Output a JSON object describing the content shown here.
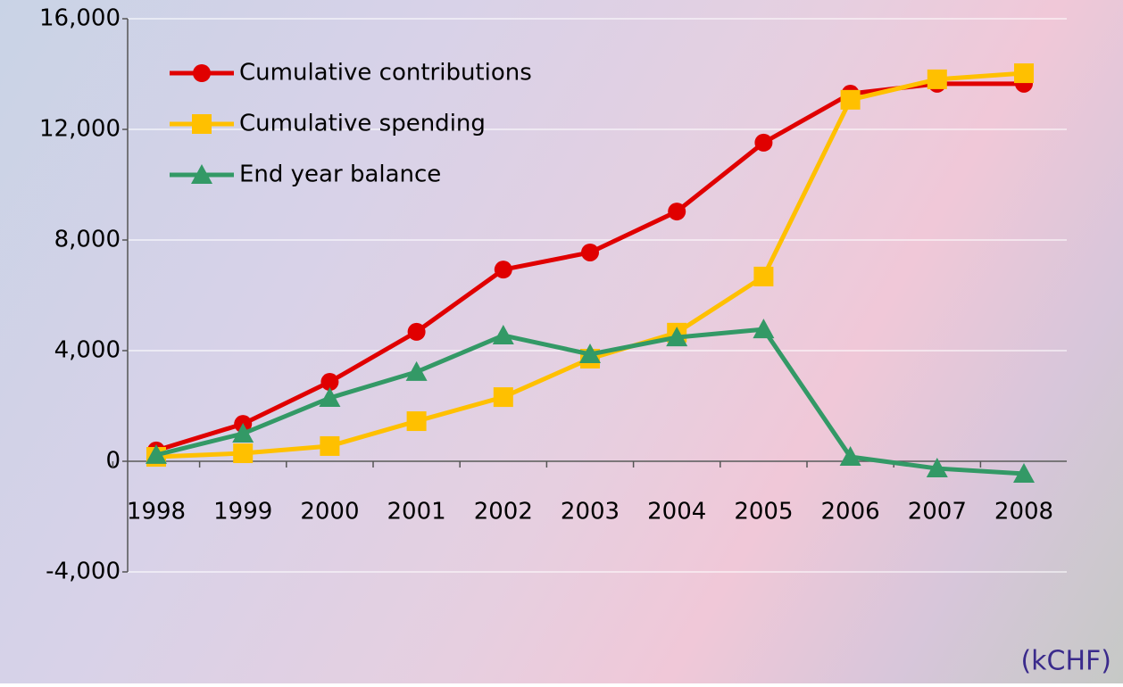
{
  "chart_data": {
    "type": "line",
    "annotation": "(kCHF)",
    "categories": [
      "1998",
      "1999",
      "2000",
      "2001",
      "2002",
      "2003",
      "2004",
      "2005",
      "2006",
      "2007",
      "2008"
    ],
    "series": [
      {
        "name": "Cumulative contributions",
        "color": "#e00000",
        "marker": "circle",
        "values": [
          390,
          1350,
          2870,
          4680,
          6930,
          7550,
          9030,
          11520,
          13290,
          13650,
          13650
        ]
      },
      {
        "name": "Cumulative spending",
        "color": "#ffc000",
        "marker": "square",
        "values": [
          160,
          290,
          550,
          1450,
          2320,
          3710,
          4650,
          6680,
          13070,
          13810,
          14030
        ]
      },
      {
        "name": "End year balance",
        "color": "#339966",
        "marker": "triangle",
        "values": [
          230,
          1000,
          2290,
          3230,
          4550,
          3870,
          4480,
          4770,
          160,
          -260,
          -450
        ]
      }
    ],
    "ylim": [
      -4000,
      16000
    ],
    "yticks": [
      {
        "value": -4000,
        "label": "-4,000"
      },
      0,
      {
        "value": 4000,
        "label": "4,000"
      },
      {
        "value": 8000,
        "label": "8,000"
      },
      {
        "value": 12000,
        "label": "12,000"
      },
      {
        "value": 16000,
        "label": "16,000"
      }
    ],
    "grid": true,
    "legend": "top-left"
  }
}
